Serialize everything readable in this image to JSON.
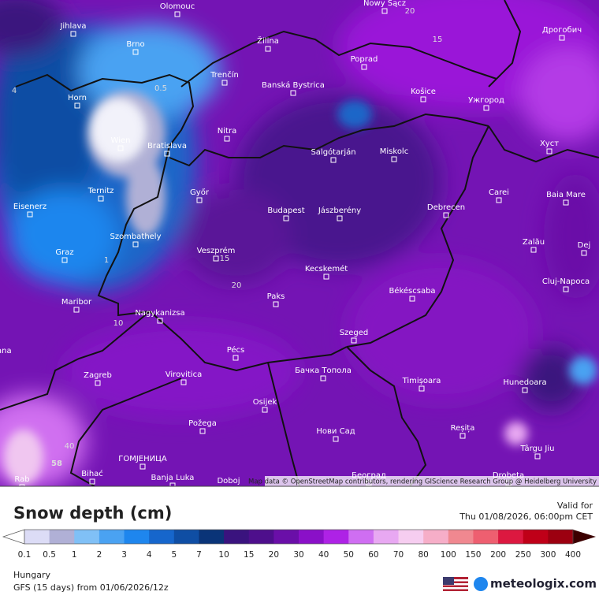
{
  "map": {
    "cities": [
      "Olomouc",
      "Nowy Sącz",
      "Дрогобич",
      "Jihlava",
      "Žilina",
      "Poprad",
      "Brno",
      "Trenčín",
      "Banská Bystrica",
      "Košice",
      "Ужгород",
      "Horn",
      "Nitra",
      "Wien",
      "Bratislava",
      "Salgótarján",
      "Miskolc",
      "Хуст",
      "Ternitz",
      "Győr",
      "Carei",
      "Baia Mare",
      "Eisenerz",
      "Budapest",
      "Jászberény",
      "Debrecen",
      "Szombathely",
      "Zalău",
      "Graz",
      "Veszprém",
      "Dej",
      "Kecskemét",
      "Cluj-Napoca",
      "Maribor",
      "Paks",
      "Békéscsaba",
      "Nagykanizsa",
      "Pécs",
      "Szeged",
      "Ljubljana",
      "Zagreb",
      "Virovitica",
      "Бачка Топола",
      "Timișoara",
      "Hunedoara",
      "Osijek",
      "Požega",
      "Нови Сад",
      "Reșița",
      "Târgu Jiu",
      "ГОМЈЕНИЦА",
      "Bihać",
      "Banja Luka",
      "Doboj",
      "Београд",
      "Drobeta",
      "Rab"
    ],
    "contour_labels": [
      "20",
      "15",
      "10",
      "40",
      "58",
      "0.5",
      "1",
      "4",
      "20",
      "15"
    ],
    "attribution": "Map data © OpenStreetMap contributors, rendering GIScience Research Group @ Heidelberg University"
  },
  "legend": {
    "title": "Snow depth (cm)",
    "levels": [
      "0.1",
      "0.5",
      "1",
      "2",
      "3",
      "4",
      "5",
      "7",
      "10",
      "15",
      "20",
      "30",
      "40",
      "50",
      "60",
      "70",
      "80",
      "100",
      "150",
      "200",
      "250",
      "300",
      "400"
    ],
    "colors": [
      "#ffffff",
      "#dcdcf6",
      "#b0b0d6",
      "#80c0f6",
      "#4aa2f2",
      "#1e86ee",
      "#1666cc",
      "#0f4ea4",
      "#0a3478",
      "#3a137e",
      "#4e0f8c",
      "#6a0fa8",
      "#8a10c8",
      "#ae22e6",
      "#cf6ef2",
      "#e8a8f2",
      "#f6cdf0",
      "#f6aec8",
      "#f08890",
      "#ee5f70",
      "#dc1840",
      "#bf0018",
      "#9c0010",
      "#7e0010",
      "#3c0000"
    ]
  },
  "header": {
    "valid_label": "Valid for",
    "valid_time": "Thu 01/08/2026, 06:00pm CET"
  },
  "footer": {
    "region": "Hungary",
    "model": "GFS (15 days) from 01/06/2026/12z",
    "brand": "meteologix.com"
  }
}
